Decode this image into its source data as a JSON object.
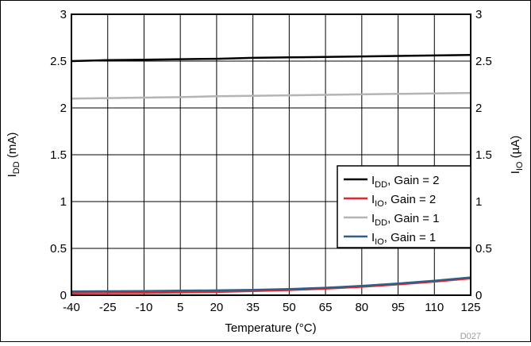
{
  "chart_data": {
    "type": "line",
    "x": [
      -40,
      -25,
      -10,
      5,
      20,
      35,
      50,
      65,
      80,
      95,
      110,
      125
    ],
    "xlabel": "Temperature (°C)",
    "ylabel_left": {
      "main": "I",
      "sub": "DD",
      "unit": " (mA)"
    },
    "ylabel_right": {
      "main": "I",
      "sub": "IO",
      "unit": " (µA)"
    },
    "xlim": [
      -40,
      125
    ],
    "ylim": [
      0,
      3
    ],
    "x_ticks": [
      "-40",
      "-25",
      "-10",
      "5",
      "20",
      "35",
      "50",
      "65",
      "80",
      "95",
      "110",
      "125"
    ],
    "y_ticks": [
      "0",
      "0.5",
      "1",
      "1.5",
      "2",
      "2.5",
      "3"
    ],
    "grid": true,
    "legend_position": "right",
    "series": [
      {
        "name": "I_DD, Gain = 2",
        "label_main": "I",
        "label_sub": "DD",
        "label_rest": ", Gain = 2",
        "color": "#000000",
        "values": [
          2.5,
          2.51,
          2.515,
          2.52,
          2.525,
          2.535,
          2.54,
          2.545,
          2.55,
          2.555,
          2.56,
          2.565
        ]
      },
      {
        "name": "I_IO, Gain = 2",
        "label_main": "I",
        "label_sub": "IO",
        "label_rest": ", Gain = 2",
        "color": "#e8242b",
        "values": [
          0.02,
          0.022,
          0.025,
          0.03,
          0.035,
          0.045,
          0.055,
          0.07,
          0.09,
          0.115,
          0.145,
          0.18
        ]
      },
      {
        "name": "I_DD, Gain = 1",
        "label_main": "I",
        "label_sub": "DD",
        "label_rest": ", Gain = 1",
        "color": "#b4b4b4",
        "values": [
          2.1,
          2.105,
          2.11,
          2.115,
          2.125,
          2.13,
          2.135,
          2.14,
          2.145,
          2.15,
          2.155,
          2.16
        ]
      },
      {
        "name": "I_IO, Gain = 1",
        "label_main": "I",
        "label_sub": "IO",
        "label_rest": ", Gain = 1",
        "color": "#2f5f86",
        "values": [
          0.04,
          0.042,
          0.045,
          0.048,
          0.052,
          0.058,
          0.065,
          0.08,
          0.1,
          0.125,
          0.155,
          0.19
        ]
      }
    ],
    "annotation": "D027"
  }
}
